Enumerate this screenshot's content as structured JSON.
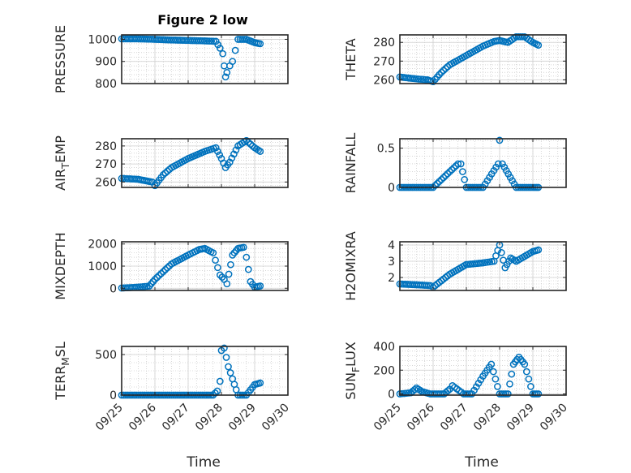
{
  "figure": {
    "title": "Figure 2 low",
    "marker_color": "#0072BD"
  },
  "chart_data": [
    {
      "type": "scatter",
      "ylabel": "PRESSURE",
      "ylabel_sub": "",
      "ylim": [
        800,
        1020
      ],
      "yticks": [
        800,
        900,
        1000
      ],
      "x": [
        "09/25 00:00",
        "09/25 12:00",
        "09/26 00:00",
        "09/26 12:00",
        "09/27 00:00",
        "09/27 12:00",
        "09/27 20:00",
        "09/27 23:00",
        "09/28 01:00",
        "09/28 02:00",
        "09/28 03:00",
        "09/28 04:00",
        "09/28 06:00",
        "09/28 08:00",
        "09/28 10:00",
        "09/28 12:00",
        "09/28 18:00",
        "09/29 00:00",
        "09/29 04:00"
      ],
      "y": [
        1002,
        1002,
        1000,
        997,
        995,
        993,
        991,
        960,
        935,
        880,
        830,
        850,
        880,
        900,
        950,
        1000,
        1000,
        985,
        980
      ]
    },
    {
      "type": "scatter",
      "ylabel": "THETA",
      "ylabel_sub": "",
      "ylim": [
        258,
        284
      ],
      "yticks": [
        260,
        270,
        280
      ],
      "x": [
        "09/25 00:00",
        "09/25 12:00",
        "09/25 20:00",
        "09/26 00:00",
        "09/26 06:00",
        "09/26 12:00",
        "09/27 00:00",
        "09/27 12:00",
        "09/27 20:00",
        "09/28 00:00",
        "09/28 06:00",
        "09/28 12:00",
        "09/28 18:00",
        "09/29 00:00",
        "09/29 04:00"
      ],
      "y": [
        261.5,
        260.5,
        260,
        259,
        264,
        268,
        273,
        278,
        280.5,
        281,
        280,
        283,
        283,
        280,
        278.5
      ]
    },
    {
      "type": "scatter",
      "ylabel": "AIR",
      "ylabel_sub": "T",
      "ylabel_suffix": "EMP",
      "ylim": [
        257,
        284
      ],
      "yticks": [
        260,
        270,
        280
      ],
      "x": [
        "09/25 00:00",
        "09/25 12:00",
        "09/25 22:00",
        "09/26 00:00",
        "09/26 06:00",
        "09/26 12:00",
        "09/27 00:00",
        "09/27 12:00",
        "09/27 20:00",
        "09/28 00:00",
        "09/28 03:00",
        "09/28 06:00",
        "09/28 12:00",
        "09/28 18:00",
        "09/29 00:00",
        "09/29 04:00"
      ],
      "y": [
        262,
        261.5,
        260,
        258,
        264,
        268,
        273,
        277,
        279,
        273,
        268,
        271,
        280,
        283,
        279,
        277
      ]
    },
    {
      "type": "scatter",
      "ylabel": "RAINFALL",
      "ylabel_sub": "",
      "ylim": [
        0,
        0.62
      ],
      "yticks": [
        0,
        0.5
      ],
      "yticklabels": [
        "0",
        "0.5"
      ],
      "x": [
        "09/25 00:00",
        "09/25 12:00",
        "09/26 00:00",
        "09/26 18:00",
        "09/26 20:00",
        "09/27 00:00",
        "09/27 12:00",
        "09/27 23:00",
        "09/28 00:00",
        "09/28 02:00",
        "09/28 12:00",
        "09/29 00:00",
        "09/29 04:00"
      ],
      "y": [
        0,
        0,
        0,
        0.3,
        0.3,
        0,
        0,
        0.3,
        0.6,
        0.3,
        0,
        0,
        0
      ]
    },
    {
      "type": "scatter",
      "ylabel": "MIXDEPTH",
      "ylabel_sub": "",
      "ylim": [
        -100,
        2100
      ],
      "yticks": [
        0,
        1000,
        2000
      ],
      "x": [
        "09/25 00:00",
        "09/25 12:00",
        "09/25 20:00",
        "09/26 00:00",
        "09/26 12:00",
        "09/27 00:00",
        "09/27 08:00",
        "09/27 12:00",
        "09/27 18:00",
        "09/27 23:00",
        "09/28 02:00",
        "09/28 04:00",
        "09/28 08:00",
        "09/28 12:00",
        "09/28 16:00",
        "09/28 18:00",
        "09/28 21:00",
        "09/29 00:00",
        "09/29 04:00"
      ],
      "y": [
        10,
        50,
        100,
        400,
        1100,
        1500,
        1750,
        1800,
        1600,
        600,
        400,
        200,
        1500,
        1800,
        1850,
        1400,
        300,
        50,
        100
      ]
    },
    {
      "type": "scatter",
      "ylabel": "H2OMIXRA",
      "ylabel_sub": "",
      "ylim": [
        1.2,
        4.2
      ],
      "yticks": [
        2,
        3,
        4
      ],
      "x": [
        "09/25 00:00",
        "09/25 12:00",
        "09/25 22:00",
        "09/26 00:00",
        "09/26 12:00",
        "09/27 00:00",
        "09/27 12:00",
        "09/27 20:00",
        "09/28 00:00",
        "09/28 04:00",
        "09/28 08:00",
        "09/28 12:00",
        "09/29 00:00",
        "09/29 04:00"
      ],
      "y": [
        1.6,
        1.55,
        1.5,
        1.4,
        2.2,
        2.8,
        2.9,
        3.0,
        4.0,
        2.6,
        3.2,
        3.0,
        3.6,
        3.7
      ]
    },
    {
      "type": "scatter",
      "ylabel": "TERR",
      "ylabel_sub": "M",
      "ylabel_suffix": "SL",
      "ylim": [
        0,
        600
      ],
      "yticks": [
        0,
        500
      ],
      "x": [
        "09/25 00:00",
        "09/26 00:00",
        "09/27 00:00",
        "09/27 18:00",
        "09/27 21:00",
        "09/27 23:00",
        "09/28 00:00",
        "09/28 02:00",
        "09/28 05:00",
        "09/28 08:00",
        "09/28 12:00",
        "09/28 18:00",
        "09/29 00:00",
        "09/29 04:00"
      ],
      "y": [
        0,
        0,
        0,
        0,
        50,
        170,
        550,
        580,
        350,
        200,
        0,
        0,
        130,
        150
      ]
    },
    {
      "type": "scatter",
      "ylabel": "SUN",
      "ylabel_sub": "F",
      "ylabel_suffix": "LUX",
      "ylim": [
        -10,
        400
      ],
      "yticks": [
        0,
        200,
        400
      ],
      "x": [
        "09/25 00:00",
        "09/25 08:00",
        "09/25 12:00",
        "09/25 16:00",
        "09/25 22:00",
        "09/26 08:00",
        "09/26 12:00",
        "09/26 14:00",
        "09/26 22:00",
        "09/27 04:00",
        "09/27 12:00",
        "09/27 18:00",
        "09/28 00:00",
        "09/28 06:00",
        "09/28 10:00",
        "09/28 14:00",
        "09/28 18:00",
        "09/29 00:00",
        "09/29 04:00"
      ],
      "y": [
        0,
        10,
        50,
        20,
        0,
        0,
        40,
        70,
        0,
        0,
        150,
        250,
        0,
        0,
        250,
        310,
        250,
        0,
        0
      ]
    }
  ],
  "xaxis": {
    "label": "Time",
    "ticks": [
      "09/25",
      "09/26",
      "09/27",
      "09/28",
      "09/29",
      "09/30"
    ]
  }
}
